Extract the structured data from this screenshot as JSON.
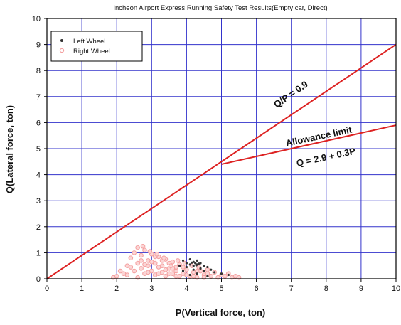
{
  "chart_data": {
    "type": "scatter",
    "title": "Incheon Airport Express Running Safety Test Results(Empty car, Direct)",
    "xlabel": "P(Vertical force, ton)",
    "ylabel": "Q(Lateral force, ton)",
    "xlim": [
      0,
      10
    ],
    "ylim": [
      0,
      10
    ],
    "xticks": [
      "0",
      "1",
      "2",
      "3",
      "4",
      "5",
      "6",
      "7",
      "8",
      "9",
      "10"
    ],
    "yticks": [
      "0",
      "1",
      "2",
      "3",
      "4",
      "5",
      "6",
      "7",
      "8",
      "9",
      "10"
    ],
    "grid": true,
    "legend_position": "top-left",
    "colors": {
      "grid": "#3333cc",
      "line": "#dd2222",
      "left_wheel": "#333333",
      "right_wheel": "#f4a0a0",
      "axis": "#000000"
    },
    "series": [
      {
        "name": "Left Wheel",
        "marker": "dot",
        "points": [
          [
            3.9,
            0.7
          ],
          [
            4.0,
            0.6
          ],
          [
            4.1,
            0.75
          ],
          [
            4.2,
            0.65
          ],
          [
            4.3,
            0.55
          ],
          [
            4.4,
            0.6
          ],
          [
            4.2,
            0.5
          ],
          [
            4.1,
            0.55
          ],
          [
            4.3,
            0.7
          ],
          [
            4.5,
            0.5
          ],
          [
            4.6,
            0.45
          ],
          [
            4.4,
            0.4
          ],
          [
            4.0,
            0.45
          ],
          [
            3.8,
            0.5
          ],
          [
            4.2,
            0.35
          ],
          [
            4.5,
            0.3
          ],
          [
            4.7,
            0.35
          ],
          [
            4.8,
            0.25
          ],
          [
            4.3,
            0.2
          ],
          [
            4.1,
            0.15
          ],
          [
            5.0,
            0.2
          ],
          [
            5.2,
            0.15
          ],
          [
            4.6,
            0.1
          ],
          [
            3.9,
            0.3
          ],
          [
            4.25,
            0.6
          ],
          [
            4.15,
            0.62
          ],
          [
            4.35,
            0.58
          ],
          [
            4.28,
            0.52
          ]
        ]
      },
      {
        "name": "Right Wheel",
        "marker": "circle",
        "points": [
          [
            2.2,
            0.2
          ],
          [
            2.3,
            0.5
          ],
          [
            2.4,
            0.8
          ],
          [
            2.5,
            1.0
          ],
          [
            2.6,
            1.2
          ],
          [
            2.7,
            0.9
          ],
          [
            2.8,
            1.1
          ],
          [
            2.9,
            0.7
          ],
          [
            3.0,
            0.95
          ],
          [
            3.1,
            0.6
          ],
          [
            3.2,
            0.85
          ],
          [
            3.3,
            0.5
          ],
          [
            3.4,
            0.75
          ],
          [
            3.5,
            0.4
          ],
          [
            3.6,
            0.65
          ],
          [
            3.7,
            0.3
          ],
          [
            3.8,
            0.55
          ],
          [
            3.9,
            0.2
          ],
          [
            4.0,
            0.35
          ],
          [
            4.1,
            0.1
          ],
          [
            4.2,
            0.25
          ],
          [
            4.3,
            0.05
          ],
          [
            4.4,
            0.3
          ],
          [
            4.5,
            0.15
          ],
          [
            4.6,
            0.2
          ],
          [
            4.7,
            0.1
          ],
          [
            4.8,
            0.25
          ],
          [
            4.9,
            0.05
          ],
          [
            5.0,
            0.15
          ],
          [
            5.1,
            0.1
          ],
          [
            5.2,
            0.2
          ],
          [
            5.3,
            0.05
          ],
          [
            5.4,
            0.1
          ],
          [
            5.5,
            0.05
          ],
          [
            2.5,
            0.3
          ],
          [
            2.6,
            0.6
          ],
          [
            2.7,
            0.4
          ],
          [
            2.8,
            0.2
          ],
          [
            2.9,
            0.5
          ],
          [
            3.0,
            0.3
          ],
          [
            3.1,
            0.15
          ],
          [
            3.2,
            0.45
          ],
          [
            3.3,
            0.25
          ],
          [
            3.4,
            0.1
          ],
          [
            3.5,
            0.6
          ],
          [
            3.6,
            0.2
          ],
          [
            3.7,
            0.45
          ],
          [
            3.8,
            0.1
          ],
          [
            2.3,
            0.15
          ],
          [
            2.4,
            0.45
          ],
          [
            2.6,
            0.05
          ],
          [
            2.7,
            0.7
          ],
          [
            2.8,
            0.55
          ],
          [
            2.9,
            0.25
          ],
          [
            3.0,
            0.65
          ],
          [
            3.1,
            0.85
          ],
          [
            3.2,
            0.2
          ],
          [
            3.3,
            0.7
          ],
          [
            3.4,
            0.35
          ],
          [
            3.5,
            0.2
          ],
          [
            3.6,
            0.4
          ],
          [
            3.7,
            0.1
          ],
          [
            3.9,
            0.45
          ],
          [
            4.0,
            0.15
          ],
          [
            4.2,
            0.1
          ],
          [
            4.3,
            0.3
          ],
          [
            4.5,
            0.05
          ],
          [
            4.6,
            0.35
          ],
          [
            2.0,
            0.1
          ],
          [
            2.1,
            0.3
          ],
          [
            1.9,
            0.05
          ],
          [
            2.75,
            1.25
          ],
          [
            2.95,
            1.05
          ],
          [
            3.15,
            0.95
          ],
          [
            3.35,
            0.8
          ],
          [
            3.55,
            0.5
          ],
          [
            3.75,
            0.7
          ],
          [
            3.95,
            0.6
          ],
          [
            4.15,
            0.5
          ],
          [
            4.35,
            0.45
          ]
        ]
      }
    ],
    "lines": [
      {
        "label": "Q/P = 0.9",
        "points": [
          [
            0,
            0
          ],
          [
            10,
            9
          ]
        ]
      },
      {
        "label": "Q = 2.9 + 0.3P",
        "points": [
          [
            5,
            4.4
          ],
          [
            10,
            5.9
          ]
        ]
      }
    ],
    "annotations": [
      "Q/P = 0.9",
      "Allowance limit",
      "Q = 2.9 + 0.3P"
    ]
  }
}
